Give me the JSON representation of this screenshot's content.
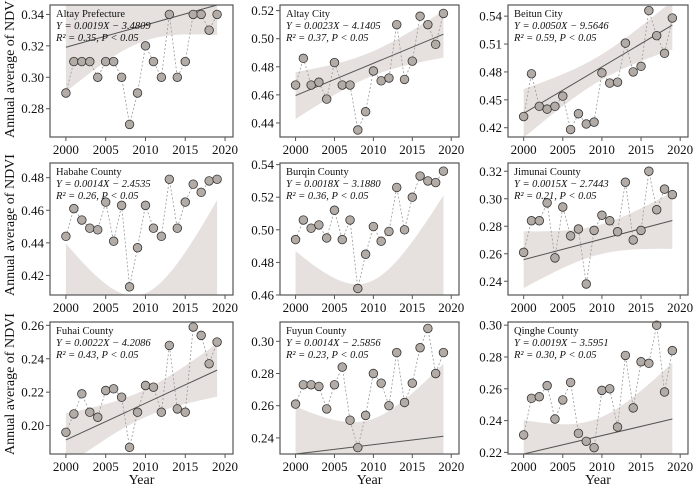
{
  "chart_data": {
    "type": "scatter",
    "ylabel": "Annual average of NDVI",
    "xlabel": "Year",
    "x": [
      2000,
      2001,
      2002,
      2003,
      2004,
      2005,
      2006,
      2007,
      2008,
      2009,
      2010,
      2011,
      2012,
      2013,
      2014,
      2015,
      2016,
      2017,
      2018,
      2019
    ],
    "xlim": [
      1998,
      2021
    ],
    "xticks": [
      2000,
      2005,
      2010,
      2015,
      2020
    ],
    "colors": {
      "point": "#b3aba6",
      "band": "#e6e1de",
      "line": "#555555",
      "connector": "#999999"
    },
    "panels": [
      {
        "title": "Altay Prefecture",
        "equation": "Y = 0.0019X − 3.4809",
        "stats": "R² = 0.35, P < 0.05",
        "slope": 0.0019,
        "intercept": -3.4809,
        "ylim": [
          0.262,
          0.346
        ],
        "yticks": [
          "0.28",
          "0.30",
          "0.32",
          "0.34"
        ],
        "values": [
          0.29,
          0.31,
          0.31,
          0.31,
          0.3,
          0.31,
          0.31,
          0.3,
          0.27,
          0.29,
          0.32,
          0.31,
          0.3,
          0.34,
          0.3,
          0.31,
          0.34,
          0.34,
          0.33,
          0.34
        ]
      },
      {
        "title": "Altay City",
        "equation": "Y = 0.0023X − 4.1405",
        "stats": "R² = 0.37, P < 0.05",
        "slope": 0.0023,
        "intercept": -4.1405,
        "ylim": [
          0.43,
          0.524
        ],
        "yticks": [
          "0.44",
          "0.46",
          "0.48",
          "0.50",
          "0.52"
        ],
        "values": [
          0.467,
          0.486,
          0.467,
          0.469,
          0.457,
          0.483,
          0.467,
          0.467,
          0.435,
          0.448,
          0.477,
          0.47,
          0.472,
          0.51,
          0.471,
          0.484,
          0.516,
          0.51,
          0.496,
          0.518
        ]
      },
      {
        "title": "Beitun City",
        "equation": "Y = 0.0050X − 9.5646",
        "stats": "R² = 0.59, P < 0.05",
        "slope": 0.005,
        "intercept": -9.5646,
        "ylim": [
          0.41,
          0.552
        ],
        "yticks": [
          "0.42",
          "0.45",
          "0.48",
          "0.51",
          "0.54"
        ],
        "values": [
          0.432,
          0.478,
          0.443,
          0.44,
          0.443,
          0.454,
          0.418,
          0.435,
          0.424,
          0.426,
          0.479,
          0.468,
          0.469,
          0.511,
          0.48,
          0.486,
          0.546,
          0.519,
          0.5,
          0.538
        ]
      },
      {
        "title": "Habahe County",
        "equation": "Y = 0.0014X − 2.4535",
        "stats": "R² = 0.26,  P < 0.05",
        "slope": 0.0014,
        "intercept": -2.4535,
        "ylim": [
          0.408,
          0.489
        ],
        "yticks": [
          "0.42",
          "0.44",
          "0.46",
          "0.48"
        ],
        "values": [
          0.444,
          0.461,
          0.454,
          0.449,
          0.448,
          0.465,
          0.441,
          0.463,
          0.413,
          0.437,
          0.463,
          0.449,
          0.444,
          0.479,
          0.449,
          0.465,
          0.476,
          0.471,
          0.478,
          0.479
        ]
      },
      {
        "title": "Burqin County",
        "equation": "Y = 0.0018X − 3.1880",
        "stats": "R² = 0.36, P < 0.05",
        "slope": 0.0018,
        "intercept": -3.188,
        "ylim": [
          0.46,
          0.541
        ],
        "yticks": [
          "0.46",
          "0.48",
          "0.50",
          "0.52",
          "0.54"
        ],
        "values": [
          0.494,
          0.506,
          0.501,
          0.503,
          0.495,
          0.512,
          0.494,
          0.506,
          0.464,
          0.485,
          0.502,
          0.493,
          0.499,
          0.526,
          0.5,
          0.52,
          0.533,
          0.53,
          0.529,
          0.536
        ]
      },
      {
        "title": "Jimunai County",
        "equation": "Y = 0.0015X − 2.7443",
        "stats": "R² = 0.21, P < 0.05",
        "slope": 0.0015,
        "intercept": -2.7443,
        "ylim": [
          0.23,
          0.326
        ],
        "yticks": [
          "0.24",
          "0.26",
          "0.28",
          "0.30",
          "0.32"
        ],
        "values": [
          0.261,
          0.284,
          0.284,
          0.297,
          0.257,
          0.294,
          0.273,
          0.278,
          0.238,
          0.277,
          0.288,
          0.284,
          0.276,
          0.312,
          0.27,
          0.277,
          0.32,
          0.292,
          0.307,
          0.303
        ]
      },
      {
        "title": "Fuhai County",
        "equation": "Y = 0.0022X − 4.2086",
        "stats": "R² = 0.43, P < 0.05",
        "slope": 0.0022,
        "intercept": -4.2086,
        "ylim": [
          0.183,
          0.262
        ],
        "yticks": [
          "0.20",
          "0.22",
          "0.24",
          "0.26"
        ],
        "values": [
          0.196,
          0.207,
          0.219,
          0.208,
          0.205,
          0.221,
          0.222,
          0.217,
          0.187,
          0.208,
          0.224,
          0.223,
          0.208,
          0.248,
          0.21,
          0.208,
          0.259,
          0.254,
          0.237,
          0.25
        ]
      },
      {
        "title": "Fuyun County",
        "equation": "Y = 0.0014X − 2.5856",
        "stats": "R² = 0.23, P < 0.05",
        "slope": 0.0014,
        "intercept": -2.5856,
        "ylim": [
          0.23,
          0.312
        ],
        "yticks": [
          "0.24",
          "0.26",
          "0.28",
          "0.30"
        ],
        "values": [
          0.261,
          0.273,
          0.273,
          0.272,
          0.258,
          0.273,
          0.284,
          0.251,
          0.234,
          0.254,
          0.28,
          0.274,
          0.26,
          0.293,
          0.262,
          0.274,
          0.296,
          0.308,
          0.28,
          0.293
        ]
      },
      {
        "title": "Qinghe County",
        "equation": "Y = 0.0019X − 3.5951",
        "stats": "R² = 0.30, P < 0.05",
        "slope": 0.0019,
        "intercept": -3.5951,
        "ylim": [
          0.219,
          0.302
        ],
        "yticks": [
          "0.22",
          "0.24",
          "0.26",
          "0.28",
          "0.30"
        ],
        "values": [
          0.231,
          0.254,
          0.255,
          0.262,
          0.241,
          0.253,
          0.264,
          0.232,
          0.227,
          0.223,
          0.259,
          0.26,
          0.236,
          0.281,
          0.248,
          0.277,
          0.276,
          0.3,
          0.258,
          0.284
        ]
      }
    ]
  }
}
